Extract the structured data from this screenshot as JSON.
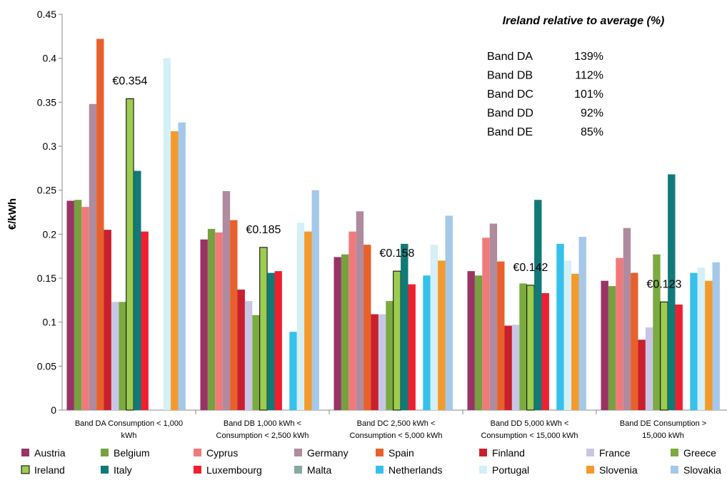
{
  "chart_data": {
    "type": "bar",
    "title": "",
    "ylabel": "€/kWh",
    "xlabel": "",
    "ylim": [
      0,
      0.45
    ],
    "yticks": [
      "0",
      "0.05",
      "0.1",
      "0.15",
      "0.2",
      "0.25",
      "0.3",
      "0.35",
      "0.4",
      "0.45"
    ],
    "grid": false,
    "legend_position": "bottom",
    "categories": [
      [
        "Band DA Consumption < 1,000",
        "kWh"
      ],
      [
        "Band DB 1,000 kWh <",
        "Consumption < 2,500 kWh"
      ],
      [
        "Band DC 2,500 kWh <",
        "Consumption < 5,000 kWh"
      ],
      [
        "Band DD 5,000 kWh <",
        "Consumption < 15,000 kWh"
      ],
      [
        "Band DE Consumption >",
        "15,000 kWh"
      ]
    ],
    "series": [
      {
        "name": "Austria",
        "color": "#993366",
        "values": [
          0.238,
          0.194,
          0.174,
          0.158,
          0.147
        ]
      },
      {
        "name": "Belgium",
        "color": "#77a040",
        "values": [
          0.239,
          0.206,
          0.177,
          0.153,
          0.141
        ]
      },
      {
        "name": "Cyprus",
        "color": "#f07a7a",
        "values": [
          0.231,
          0.202,
          0.203,
          0.196,
          0.173
        ]
      },
      {
        "name": "Germany",
        "color": "#b08a9e",
        "values": [
          0.348,
          0.249,
          0.226,
          0.212,
          0.207
        ]
      },
      {
        "name": "Spain",
        "color": "#e8602c",
        "values": [
          0.422,
          0.216,
          0.188,
          0.169,
          0.156
        ]
      },
      {
        "name": "Finland",
        "color": "#c8202e",
        "values": [
          0.205,
          0.137,
          0.109,
          0.096,
          0.08
        ]
      },
      {
        "name": "France",
        "color": "#c8c6e6",
        "values": [
          0.123,
          0.124,
          0.109,
          0.097,
          0.094
        ]
      },
      {
        "name": "Greece",
        "color": "#7aaa40",
        "values": [
          0.123,
          0.108,
          0.124,
          0.144,
          0.177
        ]
      },
      {
        "name": "Ireland",
        "color": "#9ccc50",
        "outline": true,
        "values": [
          0.354,
          0.185,
          0.158,
          0.142,
          0.123
        ]
      },
      {
        "name": "Italy",
        "color": "#107a78",
        "values": [
          0.272,
          0.156,
          0.189,
          0.239,
          0.268
        ]
      },
      {
        "name": "Luxembourg",
        "color": "#ee2030",
        "values": [
          0.203,
          0.158,
          0.143,
          0.133,
          0.12
        ]
      },
      {
        "name": "Malta",
        "color": "#86a8a0",
        "values": [
          null,
          null,
          null,
          null,
          null
        ]
      },
      {
        "name": "Netherlands",
        "color": "#36c0ec",
        "values": [
          null,
          0.089,
          0.153,
          0.189,
          0.156
        ]
      },
      {
        "name": "Portugal",
        "color": "#d4f0f6",
        "values": [
          0.4,
          0.213,
          0.188,
          0.17,
          0.162
        ]
      },
      {
        "name": "Slovenia",
        "color": "#f49a2c",
        "values": [
          0.317,
          0.203,
          0.17,
          0.155,
          0.147
        ]
      },
      {
        "name": "Slovakia",
        "color": "#a6c8e8",
        "values": [
          0.327,
          0.25,
          0.221,
          0.197,
          0.168
        ]
      }
    ],
    "annotations": [
      {
        "text": "€0.354",
        "category": 0,
        "value": 0.354
      },
      {
        "text": "€0.185",
        "category": 1,
        "value": 0.185
      },
      {
        "text": "€0.158",
        "category": 2,
        "value": 0.158
      },
      {
        "text": "€0.142",
        "category": 3,
        "value": 0.142
      },
      {
        "text": "€0.123",
        "category": 4,
        "value": 0.123
      }
    ],
    "relative_box": {
      "title": "Ireland relative to average (%)",
      "rows": [
        {
          "band": "Band DA",
          "value": "139%"
        },
        {
          "band": "Band DB",
          "value": "112%"
        },
        {
          "band": "Band DC",
          "value": "101%"
        },
        {
          "band": "Band DD",
          "value": "92%"
        },
        {
          "band": "Band DE",
          "value": "85%"
        }
      ]
    }
  }
}
